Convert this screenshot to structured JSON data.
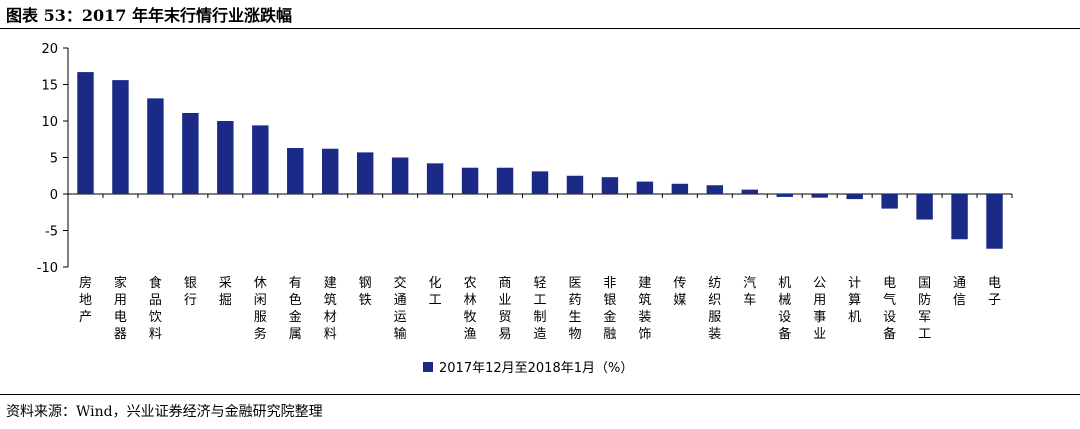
{
  "page": {
    "title": "图表 53：2017 年年末行情行业涨跌幅",
    "source": "资料来源：Wind，兴业证券经济与金融研究院整理"
  },
  "chart_data": {
    "type": "bar",
    "title": "",
    "xlabel": "",
    "ylabel": "",
    "ylim": [
      -10,
      20
    ],
    "yticks": [
      20,
      15,
      10,
      5,
      0,
      -5,
      -10
    ],
    "grid": false,
    "legend_position": "bottom",
    "bar_color": "#1B2A86",
    "series": [
      {
        "name": "2017年12月至2018年1月（%）",
        "values": [
          16.7,
          15.6,
          13.1,
          11.1,
          10.0,
          9.4,
          6.3,
          6.2,
          5.7,
          5.0,
          4.2,
          3.6,
          3.6,
          3.1,
          2.5,
          2.3,
          1.7,
          1.4,
          1.2,
          0.6,
          -0.4,
          -0.5,
          -0.7,
          -2.0,
          -3.5,
          -6.2,
          -7.5
        ]
      }
    ],
    "categories": [
      "房地产",
      "家用电器",
      "食品饮料",
      "银行",
      "采掘",
      "休闲服务",
      "有色金属",
      "建筑材料",
      "钢铁",
      "交通运输",
      "化工",
      "农林牧渔",
      "商业贸易",
      "轻工制造",
      "医药生物",
      "非银金融",
      "建筑装饰",
      "传媒",
      "纺织服装",
      "汽车",
      "机械设备",
      "公用事业",
      "计算机",
      "电气设备",
      "国防军工",
      "通信",
      "电子"
    ]
  }
}
